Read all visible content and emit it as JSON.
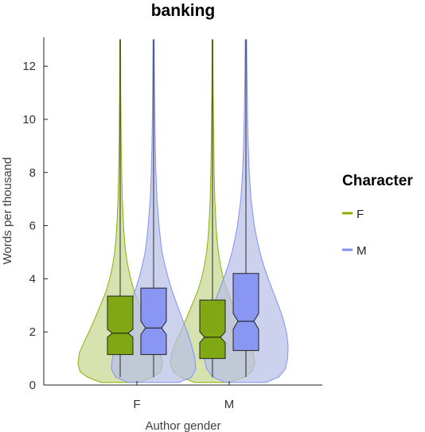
{
  "chart_data": {
    "type": "violin",
    "title": "banking",
    "xlabel": "Author gender",
    "ylabel": "Words per thousand",
    "categories": [
      "F",
      "M"
    ],
    "ylim": [
      0,
      13
    ],
    "yticks": [
      0,
      2,
      4,
      6,
      8,
      10,
      12
    ],
    "legend": {
      "title": "Character",
      "placement": "right",
      "entries": [
        {
          "name": "F",
          "color": "#88b008"
        },
        {
          "name": "M",
          "color": "#8090f8"
        }
      ]
    },
    "series": [
      {
        "name": "F",
        "color": "#88b008",
        "fill": "#c8d890",
        "boxes": [
          {
            "category": "F",
            "min": 0.3,
            "q1": 1.15,
            "median": 1.95,
            "q3": 3.35,
            "whisker_high": 9.1,
            "max": 13.0,
            "notch": [
              1.8,
              2.1
            ]
          },
          {
            "category": "M",
            "min": 0.3,
            "q1": 1.0,
            "median": 1.8,
            "q3": 3.2,
            "whisker_high": 9.6,
            "max": 13.0,
            "notch": [
              1.6,
              2.0
            ]
          }
        ],
        "density": [
          [
            [
              0.1,
              0.45
            ],
            [
              0.3,
              0.78
            ],
            [
              0.5,
              0.95
            ],
            [
              0.8,
              1.0
            ],
            [
              1.2,
              0.97
            ],
            [
              1.6,
              0.86
            ],
            [
              2.0,
              0.74
            ],
            [
              2.5,
              0.6
            ],
            [
              3.0,
              0.47
            ],
            [
              3.5,
              0.34
            ],
            [
              4.0,
              0.25
            ],
            [
              4.5,
              0.18
            ],
            [
              5.0,
              0.13
            ],
            [
              5.5,
              0.1
            ],
            [
              6.0,
              0.08
            ],
            [
              7.0,
              0.05
            ],
            [
              8.0,
              0.035
            ],
            [
              9.0,
              0.025
            ],
            [
              10.0,
              0.018
            ],
            [
              11.0,
              0.014
            ],
            [
              12.0,
              0.011
            ],
            [
              13.0,
              0.01
            ]
          ],
          [
            [
              0.1,
              0.42
            ],
            [
              0.3,
              0.75
            ],
            [
              0.5,
              0.93
            ],
            [
              0.8,
              1.0
            ],
            [
              1.2,
              0.97
            ],
            [
              1.6,
              0.88
            ],
            [
              2.0,
              0.76
            ],
            [
              2.5,
              0.62
            ],
            [
              3.0,
              0.49
            ],
            [
              3.5,
              0.36
            ],
            [
              4.0,
              0.26
            ],
            [
              4.5,
              0.19
            ],
            [
              5.0,
              0.14
            ],
            [
              5.5,
              0.105
            ],
            [
              6.0,
              0.085
            ],
            [
              7.0,
              0.055
            ],
            [
              8.0,
              0.04
            ],
            [
              9.0,
              0.03
            ],
            [
              10.0,
              0.022
            ],
            [
              11.0,
              0.016
            ],
            [
              12.0,
              0.012
            ],
            [
              13.0,
              0.01
            ]
          ]
        ]
      },
      {
        "name": "M",
        "color": "#8090f8",
        "fill": "#b8bfe6",
        "boxes": [
          {
            "category": "F",
            "min": 0.3,
            "q1": 1.15,
            "median": 2.15,
            "q3": 3.65,
            "whisker_high": 10.9,
            "max": 13.0,
            "notch": [
              1.9,
              2.4
            ]
          },
          {
            "category": "M",
            "min": 0.3,
            "q1": 1.3,
            "median": 2.4,
            "q3": 4.2,
            "whisker_high": 12.5,
            "max": 13.0,
            "notch": [
              2.1,
              2.7
            ]
          }
        ],
        "density": [
          [
            [
              0.1,
              0.6
            ],
            [
              0.3,
              0.9
            ],
            [
              0.6,
              1.0
            ],
            [
              1.0,
              0.98
            ],
            [
              1.5,
              0.9
            ],
            [
              2.0,
              0.8
            ],
            [
              2.5,
              0.68
            ],
            [
              3.0,
              0.56
            ],
            [
              3.5,
              0.45
            ],
            [
              4.0,
              0.35
            ],
            [
              4.5,
              0.27
            ],
            [
              5.0,
              0.2
            ],
            [
              5.5,
              0.16
            ],
            [
              6.0,
              0.13
            ],
            [
              7.0,
              0.08
            ],
            [
              8.0,
              0.055
            ],
            [
              9.0,
              0.04
            ],
            [
              10.0,
              0.03
            ],
            [
              11.0,
              0.022
            ],
            [
              12.0,
              0.017
            ],
            [
              13.0,
              0.014
            ]
          ],
          [
            [
              0.1,
              0.48
            ],
            [
              0.3,
              0.78
            ],
            [
              0.6,
              0.93
            ],
            [
              1.0,
              0.99
            ],
            [
              1.5,
              1.0
            ],
            [
              2.0,
              0.96
            ],
            [
              2.5,
              0.88
            ],
            [
              3.0,
              0.77
            ],
            [
              3.5,
              0.65
            ],
            [
              4.0,
              0.53
            ],
            [
              4.5,
              0.42
            ],
            [
              5.0,
              0.33
            ],
            [
              5.5,
              0.26
            ],
            [
              6.0,
              0.2
            ],
            [
              7.0,
              0.12
            ],
            [
              8.0,
              0.08
            ],
            [
              9.0,
              0.055
            ],
            [
              10.0,
              0.04
            ],
            [
              11.0,
              0.03
            ],
            [
              12.0,
              0.022
            ],
            [
              13.0,
              0.016
            ]
          ]
        ]
      }
    ],
    "grid": false
  }
}
